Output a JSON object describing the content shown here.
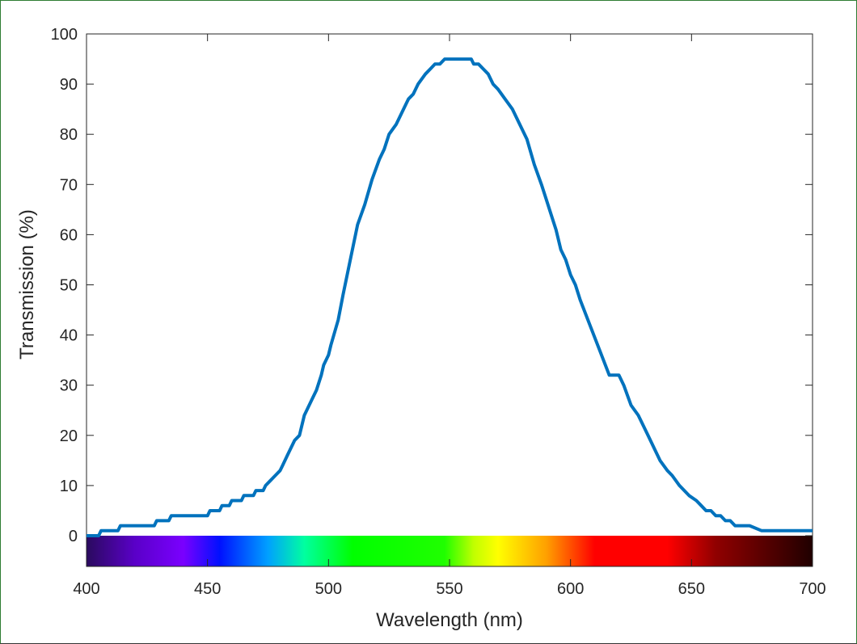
{
  "chart_data": {
    "type": "line",
    "title": "",
    "xlabel": "Wavelength (nm)",
    "ylabel": "Transmission (%)",
    "xlim": [
      400,
      700
    ],
    "ylim": [
      0,
      100
    ],
    "xticks": [
      400,
      450,
      500,
      550,
      600,
      650,
      700
    ],
    "yticks": [
      0,
      10,
      20,
      30,
      40,
      50,
      60,
      70,
      80,
      90,
      100
    ],
    "grid": false,
    "color": "#0072BD",
    "series": [
      {
        "name": "Transmission",
        "x": [
          400,
          405,
          406,
          413,
          414,
          428,
          429,
          434,
          435,
          450,
          451,
          455,
          456,
          459,
          460,
          464,
          465,
          469,
          470,
          473,
          474,
          476,
          478,
          480,
          481,
          483,
          486,
          488,
          490,
          493,
          495,
          497,
          498,
          500,
          501,
          504,
          506,
          509,
          512,
          515,
          518,
          521,
          523,
          525,
          528,
          531,
          533,
          535,
          537,
          540,
          542,
          544,
          546,
          548,
          550,
          552,
          559,
          560,
          562,
          564,
          566,
          568,
          570,
          573,
          576,
          580,
          582,
          585,
          588,
          590,
          592,
          594,
          596,
          598,
          600,
          602,
          604,
          608,
          612,
          616,
          620,
          622,
          625,
          628,
          630,
          632,
          635,
          637,
          640,
          642,
          645,
          647,
          649,
          652,
          654,
          656,
          658,
          660,
          662,
          664,
          666,
          668,
          672,
          674,
          679,
          680,
          700
        ],
        "y": [
          0,
          0,
          1,
          1,
          2,
          2,
          3,
          3,
          4,
          4,
          5,
          5,
          6,
          6,
          7,
          7,
          8,
          8,
          9,
          9,
          10,
          11,
          12,
          13,
          14,
          16,
          19,
          20,
          24,
          27,
          29,
          32,
          34,
          36,
          38,
          43,
          48,
          55,
          62,
          66,
          71,
          75,
          77,
          80,
          82,
          85,
          87,
          88,
          90,
          92,
          93,
          94,
          94,
          95,
          95,
          95,
          95,
          94,
          94,
          93,
          92,
          90,
          89,
          87,
          85,
          81,
          79,
          74,
          70,
          67,
          64,
          61,
          57,
          55,
          52,
          50,
          47,
          42,
          37,
          32,
          32,
          30,
          26,
          24,
          22,
          20,
          17,
          15,
          13,
          12,
          10,
          9,
          8,
          7,
          6,
          5,
          5,
          4,
          4,
          3,
          3,
          2,
          2,
          2,
          1,
          1,
          1
        ]
      }
    ],
    "spectrum_bar": {
      "stops": [
        {
          "nm": 400,
          "color": "#2a0a5e"
        },
        {
          "nm": 420,
          "color": "#5a00c8"
        },
        {
          "nm": 440,
          "color": "#7a00ff"
        },
        {
          "nm": 455,
          "color": "#0010ff"
        },
        {
          "nm": 475,
          "color": "#00a0ff"
        },
        {
          "nm": 490,
          "color": "#00ffa0"
        },
        {
          "nm": 510,
          "color": "#00ff00"
        },
        {
          "nm": 548,
          "color": "#20ff00"
        },
        {
          "nm": 560,
          "color": "#c0ff00"
        },
        {
          "nm": 570,
          "color": "#ffff00"
        },
        {
          "nm": 590,
          "color": "#ffa000"
        },
        {
          "nm": 610,
          "color": "#ff0000"
        },
        {
          "nm": 640,
          "color": "#ff0000"
        },
        {
          "nm": 660,
          "color": "#900000"
        },
        {
          "nm": 700,
          "color": "#200000"
        }
      ]
    }
  }
}
